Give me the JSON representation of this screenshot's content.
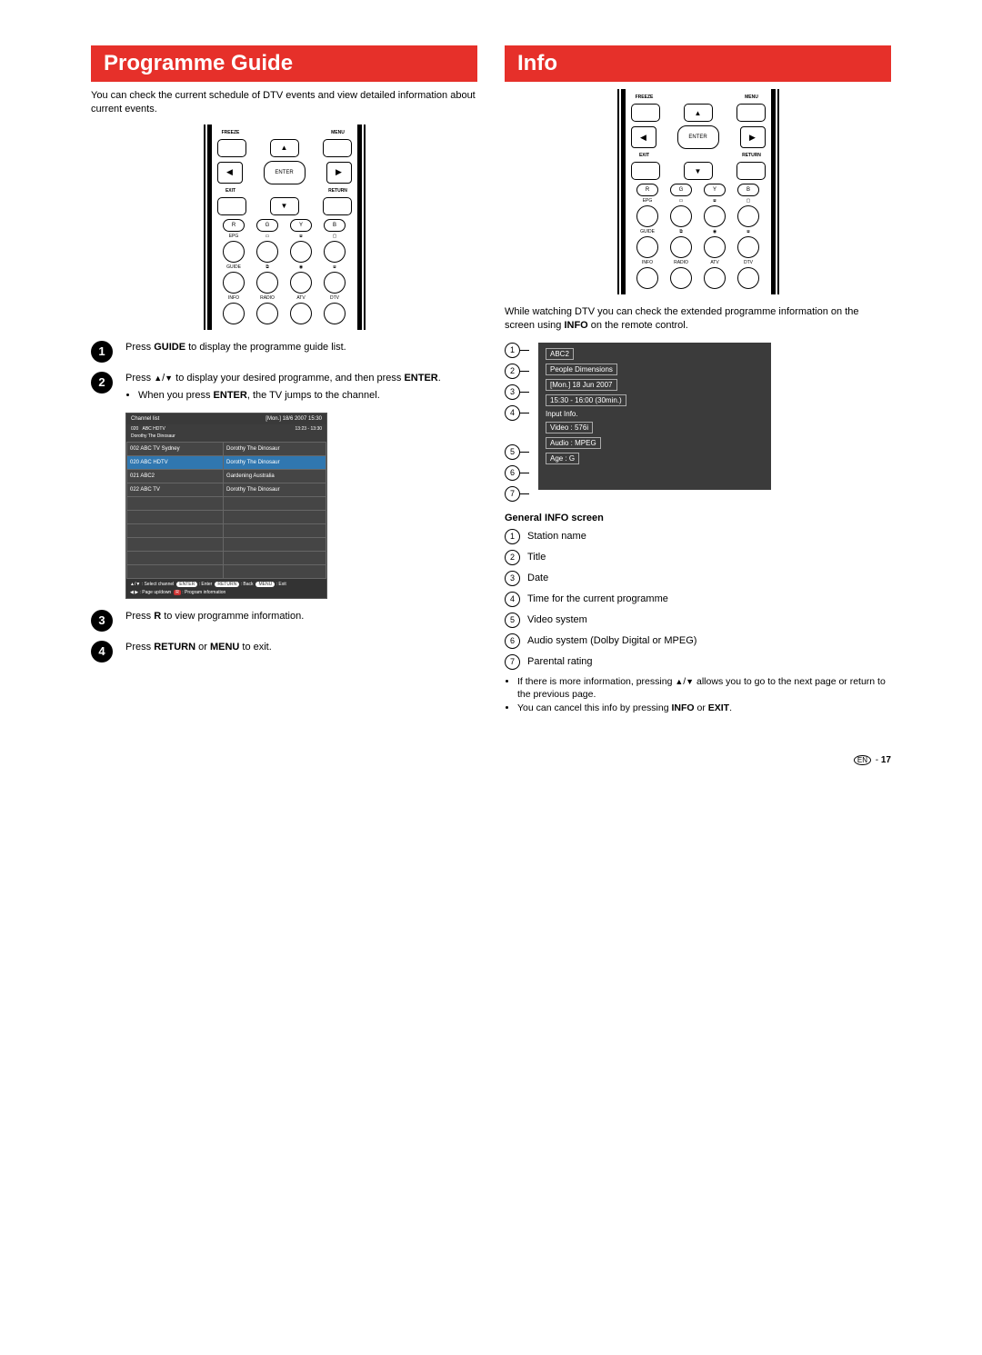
{
  "left": {
    "header": "Programme Guide",
    "intro": "You can check the current schedule of DTV events and view detailed information about current events.",
    "remote": {
      "top_labels": {
        "l": "FREEZE",
        "r": "MENU"
      },
      "enter": "ENTER",
      "exit": "EXIT",
      "return": "RETURN",
      "color_row": [
        "R",
        "G",
        "Y",
        "B"
      ],
      "row2_labels": [
        "EPG",
        "",
        "",
        ""
      ],
      "row3_labels": [
        "GUIDE",
        "",
        "",
        ""
      ],
      "row4_labels": [
        "INFO",
        "RADIO",
        "ATV",
        "DTV"
      ]
    },
    "steps": [
      {
        "n": "1",
        "html": "Press <b>GUIDE</b> to display the programme guide list."
      },
      {
        "n": "2",
        "html": "Press <span class='tri'>▲</span>/<span class='tri'>▼</span> to display your desired programme, and then press <b>ENTER</b>.",
        "bullets": [
          "When you press <b>ENTER</b>, the TV jumps to the channel."
        ]
      },
      {
        "n": "3",
        "html": "Press <b>R</b> to view programme information."
      },
      {
        "n": "4",
        "html": "Press <b>RETURN</b> or <b>MENU</b> to exit."
      }
    ],
    "chlist": {
      "title": "Channel list",
      "datetime": "[Mon.] 18/6  2007 15:30",
      "cur_no": "020",
      "cur_name": "ABC HDTV",
      "cur_time": "13:23  -  13:30",
      "cur_prog": "Dorothy The Dinosaur",
      "rows": [
        {
          "ch": "002 ABC TV Sydney",
          "prog": "Dorothy The Dinosaur"
        },
        {
          "ch": "020 ABC HDTV",
          "prog": "Dorothy The Dinosaur",
          "hl": true
        },
        {
          "ch": "021 ABC2",
          "prog": "Gardening Australia"
        },
        {
          "ch": "022 ABC TV",
          "prog": "Dorothy The Dinosaur"
        },
        {
          "ch": "",
          "prog": ""
        },
        {
          "ch": "",
          "prog": ""
        },
        {
          "ch": "",
          "prog": ""
        },
        {
          "ch": "",
          "prog": ""
        },
        {
          "ch": "",
          "prog": ""
        },
        {
          "ch": "",
          "prog": ""
        }
      ],
      "footer_items": [
        "▲/▼ : Select channel",
        "ENTER : Enter",
        "RETURN : Back",
        "MENU : Exit",
        "◀ ▶ : Page up/down",
        "R : Program information"
      ]
    }
  },
  "right": {
    "header": "Info",
    "intro": "While watching DTV you can check the extended programme information on the screen using <b>INFO</b> on the remote control.",
    "info_lines": [
      "ABC2",
      "People Dimensions",
      "[Mon.] 18 Jun 2007",
      "15:30  -  16:00 (30min.)",
      "Input Info.",
      "Video : 576i",
      "Audio : MPEG",
      "Age :    G"
    ],
    "info_boxed": [
      true,
      true,
      true,
      true,
      false,
      true,
      true,
      true
    ],
    "info_numbered": [
      1,
      2,
      3,
      4,
      0,
      5,
      6,
      7
    ],
    "subhead": "General INFO screen",
    "legend": [
      "Station name",
      "Title",
      "Date",
      "Time for the current programme",
      "Video system",
      "Audio system (Dolby Digital or MPEG)",
      "Parental rating"
    ],
    "notes": [
      "If there is more information, pressing <span class='tri'>▲</span>/<span class='tri'>▼</span> allows you to go to the next page or return to the previous page.",
      "You can cancel this info by pressing <b>INFO</b> or <b>EXIT</b>."
    ]
  },
  "page": {
    "label": "EN",
    "num": "17"
  },
  "colors": {
    "accent": "#e6302a",
    "screen": "#3b3b3b"
  }
}
